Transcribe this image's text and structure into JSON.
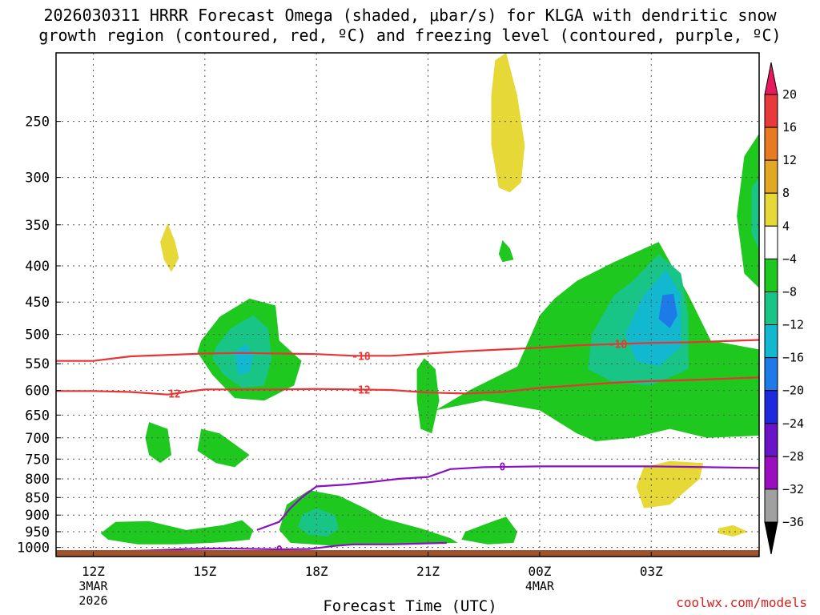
{
  "chart_data": {
    "type": "heatmap",
    "title_line1": "2026030311 HRRR Forecast Omega (shaded, μbar/s) for KLGA with dendritic snow",
    "title_line2": "growth region (contoured, red, ºC) and freezing level (contoured, purple, ºC)",
    "xlabel": "Forecast Time (UTC)",
    "ylabel": "",
    "x_ticks": [
      {
        "label": "12Z",
        "sub1": "3MAR",
        "sub2": "2026",
        "hour": 12
      },
      {
        "label": "15Z",
        "sub1": "",
        "sub2": "",
        "hour": 15
      },
      {
        "label": "18Z",
        "sub1": "",
        "sub2": "",
        "hour": 18
      },
      {
        "label": "21Z",
        "sub1": "",
        "sub2": "",
        "hour": 21
      },
      {
        "label": "00Z",
        "sub1": "4MAR",
        "sub2": "",
        "hour": 24
      },
      {
        "label": "03Z",
        "sub1": "",
        "sub2": "",
        "hour": 27
      }
    ],
    "x_range_hours": [
      11,
      29.9
    ],
    "y_ticks": [
      250,
      300,
      350,
      400,
      450,
      500,
      550,
      600,
      650,
      700,
      750,
      800,
      850,
      900,
      950,
      1000
    ],
    "y_range_hpa": [
      200,
      1030
    ],
    "colorbar": {
      "labels": [
        "20",
        "16",
        "12",
        "8",
        "4",
        "−4",
        "−8",
        "−12",
        "−16",
        "−20",
        "−24",
        "−28",
        "−32",
        "−36"
      ],
      "levels": [
        20,
        16,
        12,
        8,
        4,
        -4,
        -8,
        -12,
        -16,
        -20,
        -24,
        -28,
        -32,
        -36
      ],
      "colors": [
        "#e8185f",
        "#e83a3a",
        "#e87a22",
        "#e2a824",
        "#e6d836",
        "#ffffff",
        "#1ec81e",
        "#19c487",
        "#12b8d0",
        "#1e7ae8",
        "#1e28dc",
        "#6a14c8",
        "#9a0ec0",
        "#a0a0a0",
        "#000000"
      ]
    },
    "contours": [
      {
        "name": "dgz-minus-18",
        "color": "#e83434",
        "label": "-18",
        "points": [
          [
            11,
            545
          ],
          [
            12,
            545
          ],
          [
            13,
            537
          ],
          [
            15,
            532
          ],
          [
            16,
            531
          ],
          [
            17,
            532
          ],
          [
            18,
            533
          ],
          [
            19,
            536
          ],
          [
            20,
            536
          ],
          [
            21,
            532
          ],
          [
            22,
            528
          ],
          [
            23,
            525
          ],
          [
            24,
            522
          ],
          [
            25,
            518
          ],
          [
            26,
            516
          ],
          [
            27,
            514
          ],
          [
            28,
            513
          ],
          [
            29.9,
            509
          ]
        ]
      },
      {
        "name": "dgz-minus-12",
        "color": "#e83434",
        "label": "-12",
        "points": [
          [
            11,
            601
          ],
          [
            12,
            601
          ],
          [
            13,
            603
          ],
          [
            14,
            608
          ],
          [
            14.5,
            603
          ],
          [
            15,
            598
          ],
          [
            16,
            598
          ],
          [
            17,
            598
          ],
          [
            18,
            597
          ],
          [
            19,
            598
          ],
          [
            20,
            599
          ],
          [
            21,
            604
          ],
          [
            22,
            606
          ],
          [
            23,
            603
          ],
          [
            24,
            595
          ],
          [
            25,
            590
          ],
          [
            26,
            585
          ],
          [
            27,
            582
          ],
          [
            28,
            580
          ],
          [
            29.9,
            575
          ]
        ]
      },
      {
        "name": "freezing-level-upper",
        "color": "#8a10c0",
        "label": "0",
        "points": [
          [
            16.4,
            945
          ],
          [
            17,
            920
          ],
          [
            17.3,
            880
          ],
          [
            17.6,
            850
          ],
          [
            18,
            820
          ],
          [
            18.8,
            815
          ],
          [
            19.5,
            808
          ],
          [
            20.2,
            800
          ],
          [
            21,
            795
          ],
          [
            21.6,
            775
          ],
          [
            22.5,
            770
          ],
          [
            24,
            768
          ],
          [
            25.5,
            768
          ],
          [
            27,
            768
          ],
          [
            28.5,
            770
          ],
          [
            29.9,
            772
          ]
        ]
      },
      {
        "name": "freezing-level-lower",
        "color": "#8a10c0",
        "label": "0",
        "points": [
          [
            12.5,
            1013
          ],
          [
            13.5,
            1010
          ],
          [
            14.5,
            1005
          ],
          [
            15.5,
            1003
          ],
          [
            17,
            1006
          ],
          [
            17.8,
            1005
          ],
          [
            18.5,
            995
          ],
          [
            19,
            990
          ],
          [
            20,
            990
          ],
          [
            21.5,
            985
          ]
        ]
      }
    ],
    "contour_labels": [
      "-18",
      "-12",
      "-12",
      "-18",
      "0",
      "0"
    ],
    "omega_regions": [
      {
        "name": "omega-pos-yellow-top",
        "value": 6,
        "points": [
          [
            22.8,
            205
          ],
          [
            23.1,
            200
          ],
          [
            23.4,
            230
          ],
          [
            23.6,
            270
          ],
          [
            23.5,
            305
          ],
          [
            23.2,
            315
          ],
          [
            22.9,
            310
          ],
          [
            22.7,
            270
          ],
          [
            22.7,
            230
          ]
        ]
      },
      {
        "name": "omega-pos-yellow-upper-left",
        "value": 6,
        "points": [
          [
            14.0,
            348
          ],
          [
            14.2,
            370
          ],
          [
            14.3,
            390
          ],
          [
            14.1,
            408
          ],
          [
            13.9,
            392
          ],
          [
            13.8,
            370
          ]
        ]
      },
      {
        "name": "omega-neg-green-small-upper",
        "value": -6,
        "points": [
          [
            23,
            368
          ],
          [
            23.2,
            378
          ],
          [
            23.3,
            392
          ],
          [
            23.0,
            395
          ],
          [
            22.9,
            385
          ]
        ]
      },
      {
        "name": "omega-neg-green-left-cell",
        "value": -6,
        "points": [
          [
            14.9,
            510
          ],
          [
            15.4,
            472
          ],
          [
            16.2,
            445
          ],
          [
            16.9,
            455
          ],
          [
            17.0,
            510
          ],
          [
            17.6,
            545
          ],
          [
            17.4,
            590
          ],
          [
            16.6,
            620
          ],
          [
            15.8,
            615
          ],
          [
            15.2,
            570
          ],
          [
            14.8,
            530
          ]
        ]
      },
      {
        "name": "omega-neg-teal-left-cell",
        "value": -10,
        "points": [
          [
            15.3,
            520
          ],
          [
            15.7,
            490
          ],
          [
            16.3,
            470
          ],
          [
            16.7,
            490
          ],
          [
            16.8,
            540
          ],
          [
            16.6,
            590
          ],
          [
            16.0,
            595
          ],
          [
            15.5,
            570
          ],
          [
            15.2,
            540
          ]
        ]
      },
      {
        "name": "omega-neg-cyan-left-cell",
        "value": -14,
        "points": [
          [
            15.8,
            530
          ],
          [
            16.1,
            515
          ],
          [
            16.3,
            535
          ],
          [
            16.2,
            565
          ],
          [
            15.9,
            570
          ]
        ]
      },
      {
        "name": "omega-neg-green-right-cell",
        "value": -6,
        "points": [
          [
            21.2,
            640
          ],
          [
            22.1,
            600
          ],
          [
            23.4,
            555
          ],
          [
            24.0,
            470
          ],
          [
            24.4,
            445
          ],
          [
            25,
            420
          ],
          [
            26,
            395
          ],
          [
            27.2,
            370
          ],
          [
            28,
            440
          ],
          [
            28.6,
            510
          ],
          [
            29.9,
            525
          ],
          [
            29.9,
            695
          ],
          [
            28.5,
            700
          ],
          [
            27.5,
            680
          ],
          [
            26.5,
            700
          ],
          [
            25.5,
            708
          ],
          [
            25.0,
            690
          ],
          [
            24.0,
            640
          ],
          [
            22.5,
            620
          ]
        ]
      },
      {
        "name": "omega-neg-teal-right-cell",
        "value": -10,
        "points": [
          [
            26.5,
            420
          ],
          [
            27.2,
            385
          ],
          [
            27.8,
            410
          ],
          [
            28.0,
            470
          ],
          [
            28,
            560
          ],
          [
            27,
            590
          ],
          [
            26,
            585
          ],
          [
            25.3,
            560
          ],
          [
            25.4,
            500
          ],
          [
            26,
            440
          ]
        ]
      },
      {
        "name": "omega-neg-cyan-right-cell",
        "value": -14,
        "points": [
          [
            26.8,
            440
          ],
          [
            27.4,
            405
          ],
          [
            27.8,
            440
          ],
          [
            27.8,
            520
          ],
          [
            27.2,
            555
          ],
          [
            26.6,
            545
          ],
          [
            26.3,
            500
          ]
        ]
      },
      {
        "name": "omega-neg-blue-right-cell",
        "value": -18,
        "points": [
          [
            27.3,
            440
          ],
          [
            27.6,
            438
          ],
          [
            27.7,
            470
          ],
          [
            27.5,
            490
          ],
          [
            27.2,
            475
          ]
        ]
      },
      {
        "name": "omega-neg-green-far-right",
        "value": -6,
        "points": [
          [
            29.9,
            260
          ],
          [
            29.9,
            430
          ],
          [
            29.5,
            410
          ],
          [
            29.3,
            340
          ],
          [
            29.5,
            280
          ]
        ]
      },
      {
        "name": "omega-neg-teal-far-right",
        "value": -10,
        "points": [
          [
            29.9,
            300
          ],
          [
            29.9,
            380
          ],
          [
            29.7,
            360
          ],
          [
            29.7,
            310
          ]
        ]
      },
      {
        "name": "omega-neg-green-lower-left",
        "value": -6,
        "points": [
          [
            12.6,
            920
          ],
          [
            13.5,
            918
          ],
          [
            14.5,
            945
          ],
          [
            15.5,
            930
          ],
          [
            16,
            915
          ],
          [
            16.3,
            945
          ],
          [
            16.2,
            975
          ],
          [
            15.8,
            980
          ],
          [
            15.2,
            985
          ],
          [
            14.2,
            990
          ],
          [
            13.2,
            990
          ],
          [
            12.4,
            975
          ],
          [
            12.2,
            955
          ]
        ]
      },
      {
        "name": "omega-neg-green-small-left",
        "value": -6,
        "points": [
          [
            13.5,
            665
          ],
          [
            14.0,
            680
          ],
          [
            14.1,
            740
          ],
          [
            13.8,
            760
          ],
          [
            13.5,
            740
          ],
          [
            13.4,
            700
          ]
        ]
      },
      {
        "name": "omega-neg-green-small-mid",
        "value": -6,
        "points": [
          [
            14.9,
            680
          ],
          [
            15.4,
            690
          ],
          [
            16.2,
            740
          ],
          [
            15.8,
            770
          ],
          [
            15.3,
            760
          ],
          [
            14.8,
            730
          ]
        ]
      },
      {
        "name": "omega-neg-green-lower-mid",
        "value": -6,
        "points": [
          [
            17.2,
            870
          ],
          [
            17.8,
            830
          ],
          [
            18.6,
            845
          ],
          [
            19.3,
            880
          ],
          [
            19.8,
            910
          ],
          [
            20.8,
            940
          ],
          [
            21.6,
            970
          ],
          [
            21.8,
            985
          ],
          [
            20,
            990
          ],
          [
            18.5,
            995
          ],
          [
            17.3,
            985
          ],
          [
            17.0,
            945
          ]
        ]
      },
      {
        "name": "omega-neg-teal-lower-mid",
        "value": -10,
        "points": [
          [
            17.6,
            900
          ],
          [
            18.0,
            880
          ],
          [
            18.5,
            900
          ],
          [
            18.6,
            940
          ],
          [
            18.3,
            965
          ],
          [
            17.8,
            960
          ],
          [
            17.5,
            935
          ]
        ]
      },
      {
        "name": "omega-neg-green-low-right",
        "value": -6,
        "points": [
          [
            22,
            950
          ],
          [
            22.7,
            920
          ],
          [
            23.1,
            905
          ],
          [
            23.4,
            950
          ],
          [
            23.3,
            985
          ],
          [
            22.6,
            990
          ],
          [
            21.9,
            975
          ]
        ]
      },
      {
        "name": "omega-neg-green-mid-column",
        "value": -6,
        "points": [
          [
            20.7,
            560
          ],
          [
            20.9,
            540
          ],
          [
            21.2,
            560
          ],
          [
            21.3,
            620
          ],
          [
            21.1,
            690
          ],
          [
            20.8,
            680
          ],
          [
            20.7,
            620
          ]
        ]
      },
      {
        "name": "omega-pos-yellow-lower-right",
        "value": 6,
        "points": [
          [
            26.8,
            770
          ],
          [
            27.5,
            755
          ],
          [
            28.4,
            760
          ],
          [
            28.3,
            800
          ],
          [
            27.5,
            870
          ],
          [
            26.8,
            880
          ],
          [
            26.6,
            820
          ]
        ]
      },
      {
        "name": "omega-pos-yellow-small-right",
        "value": 6,
        "points": [
          [
            28.8,
            940
          ],
          [
            29.2,
            930
          ],
          [
            29.6,
            950
          ],
          [
            29.2,
            965
          ],
          [
            28.8,
            955
          ]
        ]
      }
    ],
    "ground": {
      "color": "#a0522d"
    }
  },
  "credit": "coolwx.com/models"
}
